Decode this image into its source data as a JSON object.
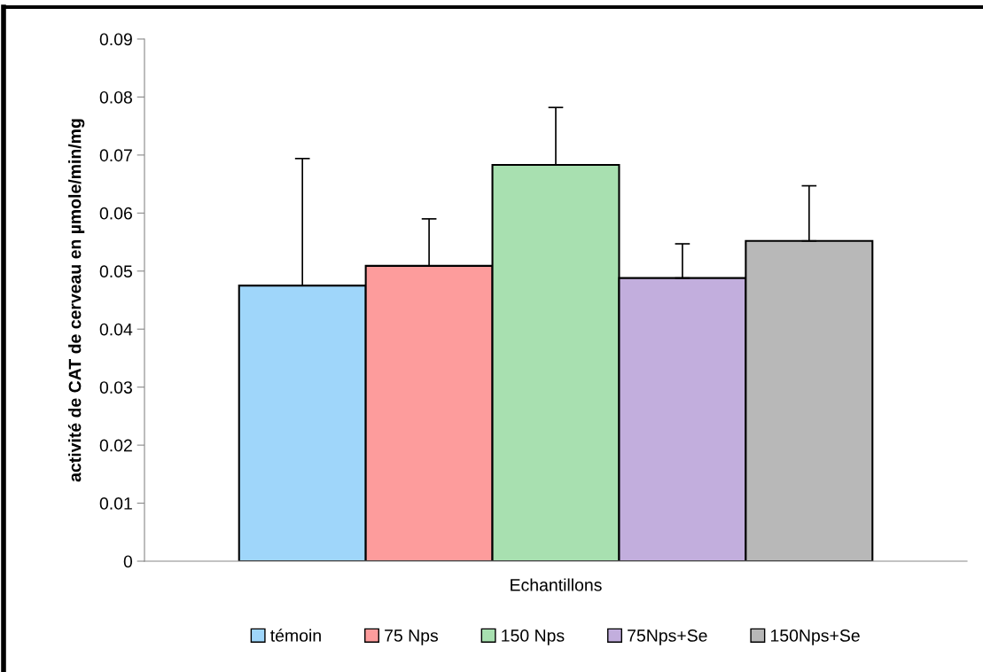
{
  "chart_data": {
    "type": "bar",
    "ylabel": "activité de CAT de cerveau en µmole/min/mg",
    "categories": [
      "Echantillons"
    ],
    "series": [
      {
        "name": "témoin",
        "color": "#9fd6fa",
        "values": [
          0.0475
        ],
        "errors": [
          [
            0.0475,
            0.0694
          ]
        ]
      },
      {
        "name": "75 Nps",
        "color": "#fd9c9c",
        "values": [
          0.0509
        ],
        "errors": [
          [
            0.0509,
            0.059
          ]
        ]
      },
      {
        "name": "150 Nps",
        "color": "#a8e0b0",
        "values": [
          0.0683
        ],
        "errors": [
          [
            0.0683,
            0.0782
          ]
        ]
      },
      {
        "name": "75Nps+Se",
        "color": "#c2aedd",
        "values": [
          0.0488
        ],
        "errors": [
          [
            0.0488,
            0.0547
          ]
        ]
      },
      {
        "name": "150Nps+Se",
        "color": "#b8b8b8",
        "values": [
          0.0552
        ],
        "errors": [
          [
            0.0552,
            0.0647
          ]
        ]
      }
    ],
    "ylim": [
      0,
      0.09
    ],
    "yticks": [
      0,
      0.01,
      0.02,
      0.03,
      0.04,
      0.05,
      0.06,
      0.07,
      0.08,
      0.09
    ],
    "grid": false,
    "legend": "bottom"
  }
}
